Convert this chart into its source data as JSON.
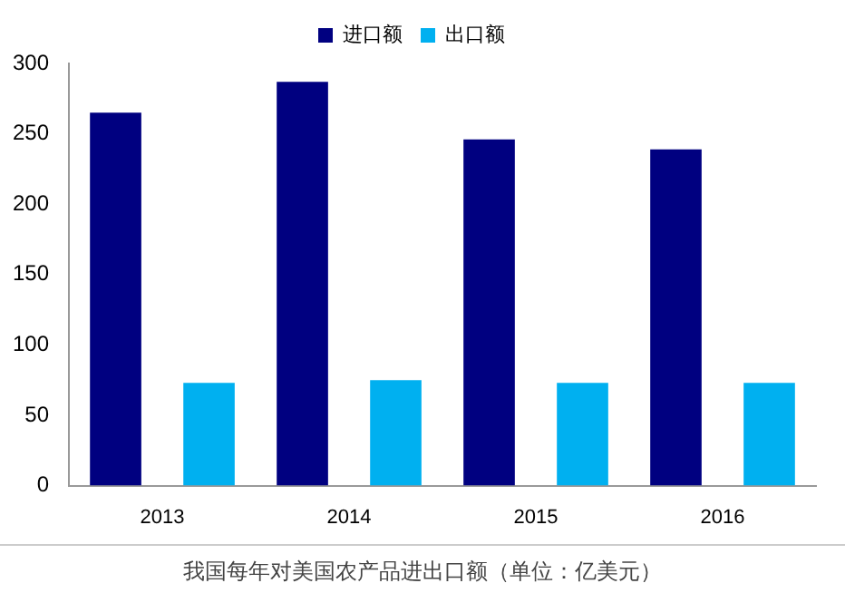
{
  "chart_data": {
    "type": "bar",
    "categories": [
      "2013",
      "2014",
      "2015",
      "2016"
    ],
    "series": [
      {
        "name": "进口额",
        "color": "#000080",
        "values": [
          265,
          287,
          246,
          239
        ]
      },
      {
        "name": "出口额",
        "color": "#00b0f0",
        "values": [
          73,
          75,
          73,
          73
        ]
      }
    ],
    "ylim": [
      0,
      300
    ],
    "yticks": [
      0,
      50,
      100,
      150,
      200,
      250,
      300
    ],
    "grid": false,
    "legend": "top",
    "annotations": [
      "我国每年对美国农产品进出口额（单位：亿美元）"
    ]
  }
}
